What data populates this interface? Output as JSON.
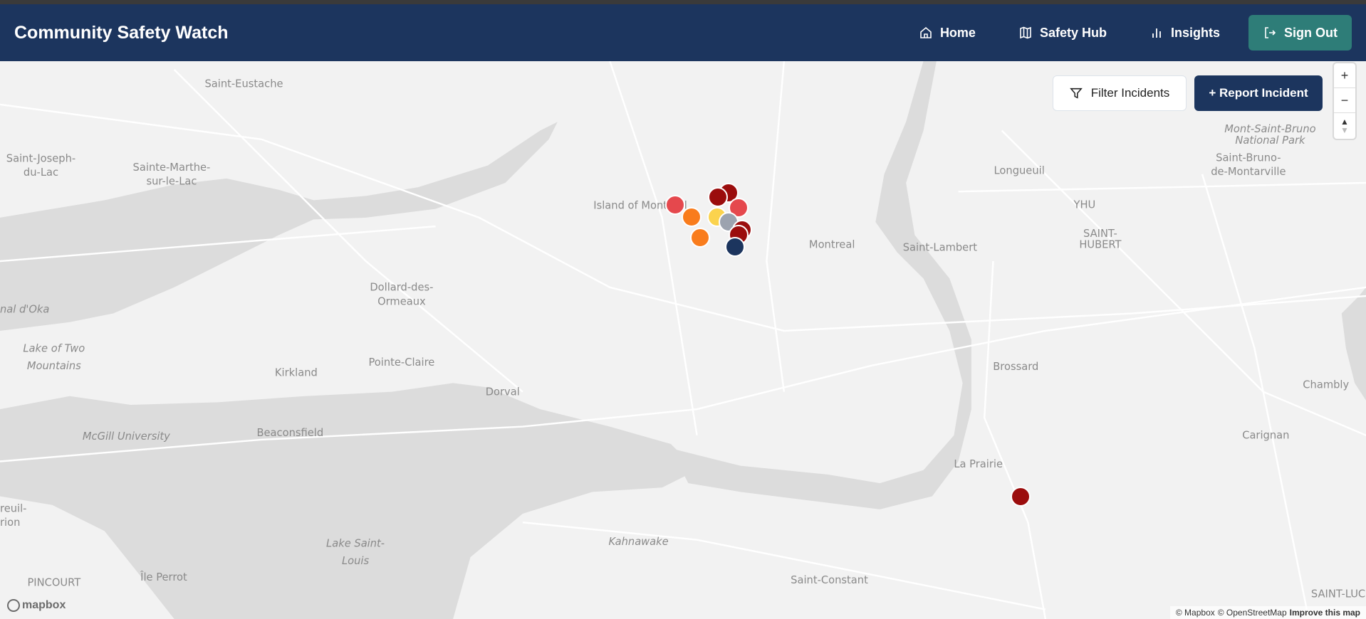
{
  "header": {
    "title": "Community Safety Watch",
    "nav": [
      {
        "label": "Home",
        "icon": "home-icon"
      },
      {
        "label": "Safety Hub",
        "icon": "map-icon"
      },
      {
        "label": "Insights",
        "icon": "bar-chart-icon"
      }
    ],
    "sign_out": "Sign Out",
    "sign_out_color": "#2e7d78",
    "bg": "#1c355e"
  },
  "map_controls": {
    "filter": "Filter Incidents",
    "report": "+ Report Incident",
    "zoom_in": "+",
    "zoom_out": "−"
  },
  "labels": {
    "saint_eustache": "Saint-Eustache",
    "sjdl1": "Saint-Joseph-",
    "sjdl2": "du-Lac",
    "sml1": "Sainte-Marthe-",
    "sml2": "sur-le-Lac",
    "island": "Island of Montreal",
    "montreal": "Montreal",
    "longueuil": "Longueuil",
    "yhu": "YHU",
    "sh1": "SAINT-",
    "sh2": "HUBERT",
    "saint_lambert": "Saint-Lambert",
    "msb1": "Mont-Saint-Bruno",
    "msb2": "National Park",
    "sbm1": "Saint-Bruno-",
    "sbm2": "de-Montarville",
    "ddo1": "Dollard-des-",
    "ddo2": "Ormeaux",
    "oka": "nal d'Oka",
    "ltm1": "Lake of Two",
    "ltm2": "Mountains",
    "pointe_claire": "Pointe-Claire",
    "kirkland": "Kirkland",
    "dorval": "Dorval",
    "beaconsfield": "Beaconsfield",
    "mcgill": "McGill University",
    "brossard": "Brossard",
    "chambly": "Chambly",
    "carignan": "Carignan",
    "la_prairie": "La Prairie",
    "kahnawake": "Kahnawake",
    "lsl1": "Lake Saint-",
    "lsl2": "Louis",
    "ile_perrot": "Île Perrot",
    "pincourt": "PINCOURT",
    "saint_constant": "Saint-Constant",
    "reuil1": "reuil-",
    "reuil2": "rion",
    "saint_luc": "SAINT-LUC"
  },
  "markers": [
    {
      "color": "#e5484d"
    },
    {
      "color": "#f97c1c"
    },
    {
      "color": "#f97c1c"
    },
    {
      "color": "#9b0d0d"
    },
    {
      "color": "#9b0d0d"
    },
    {
      "color": "#e5484d"
    },
    {
      "color": "#fbd34d"
    },
    {
      "color": "#9ca3af"
    },
    {
      "color": "#9b0d0d"
    },
    {
      "color": "#9b0d0d"
    },
    {
      "color": "#1c355e"
    },
    {
      "color": "#9b0d0d"
    }
  ],
  "attribution": {
    "mapbox": "© Mapbox",
    "osm": "© OpenStreetMap",
    "improve": "Improve this map",
    "logo": "mapbox"
  }
}
